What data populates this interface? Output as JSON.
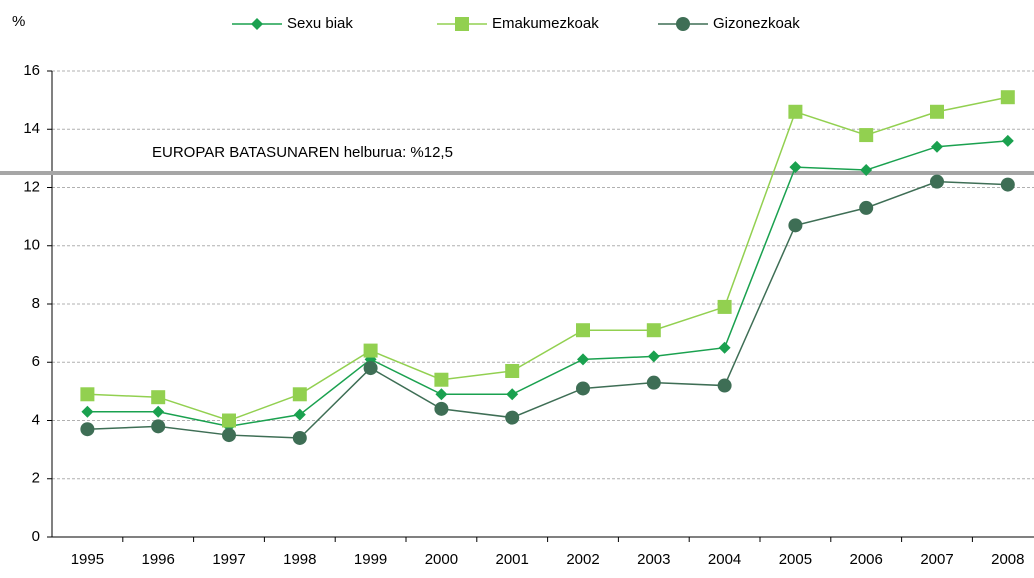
{
  "chart_data": {
    "type": "line",
    "y_label": "%",
    "categories": [
      "1995",
      "1996",
      "1997",
      "1998",
      "1999",
      "2000",
      "2001",
      "2002",
      "2003",
      "2004",
      "2005",
      "2006",
      "2007",
      "2008"
    ],
    "series": [
      {
        "name": "Sexu biak",
        "color": "#1aa14f",
        "marker": "diamond",
        "values": [
          4.3,
          4.3,
          3.8,
          4.2,
          6.1,
          4.9,
          4.9,
          6.1,
          6.2,
          6.5,
          12.7,
          12.6,
          13.4,
          13.6
        ]
      },
      {
        "name": "Emakumezkoak",
        "color": "#92d050",
        "marker": "square",
        "values": [
          4.9,
          4.8,
          4.0,
          4.9,
          6.4,
          5.4,
          5.7,
          7.1,
          7.1,
          7.9,
          14.6,
          13.8,
          14.6,
          15.1
        ]
      },
      {
        "name": "Gizonezkoak",
        "color": "#3e6e55",
        "marker": "circle",
        "values": [
          3.7,
          3.8,
          3.5,
          3.4,
          5.8,
          4.4,
          4.1,
          5.1,
          5.3,
          5.2,
          10.7,
          11.3,
          12.2,
          12.1
        ]
      }
    ],
    "reference_line": {
      "value": 12.5,
      "label": "EUROPAR BATASUNAREN helburua: %12,5",
      "color": "#a6a6a6"
    },
    "ylim": [
      0,
      16
    ],
    "yticks": [
      0,
      2,
      4,
      6,
      8,
      10,
      12,
      14,
      16
    ],
    "grid": true,
    "legend": "top"
  }
}
